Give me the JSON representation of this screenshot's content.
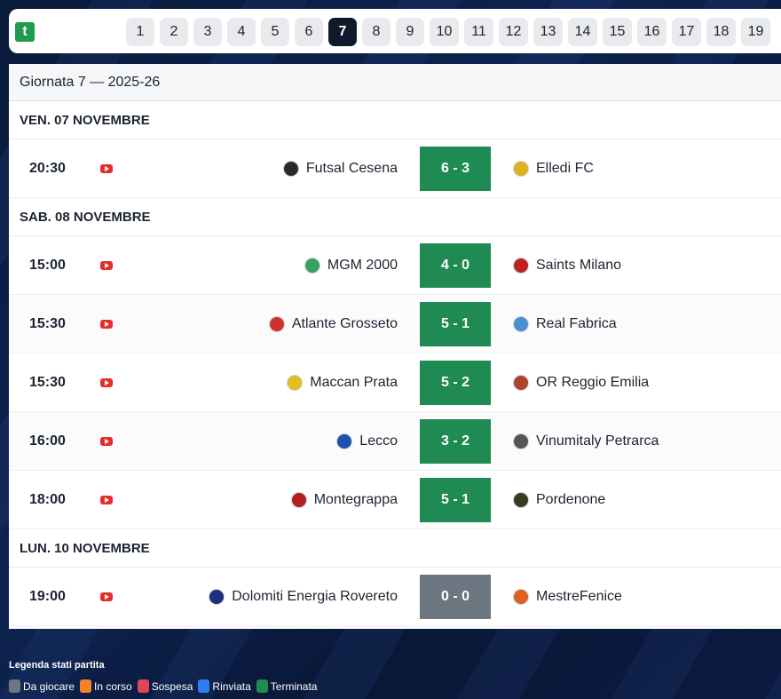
{
  "app": {
    "logo_letter": "t"
  },
  "rounds": {
    "items": [
      "1",
      "2",
      "3",
      "4",
      "5",
      "6",
      "7",
      "8",
      "9",
      "10",
      "11",
      "12",
      "13",
      "14",
      "15",
      "16",
      "17",
      "18",
      "19"
    ],
    "active": "7"
  },
  "panel": {
    "title": "Giornata 7 — 2025-26",
    "days": [
      {
        "label": "VEN. 07 NOVEMBRE",
        "matches": [
          {
            "time": "20:30",
            "home": "Futsal Cesena",
            "score": "6 - 3",
            "away": "Elledi FC",
            "status": "terminata",
            "home_color": "#2a2a2a",
            "away_color": "#e0b020"
          }
        ]
      },
      {
        "label": "SAB. 08 NOVEMBRE",
        "matches": [
          {
            "time": "15:00",
            "home": "MGM 2000",
            "score": "4 - 0",
            "away": "Saints Milano",
            "status": "terminata",
            "home_color": "#3aa060",
            "away_color": "#c02020"
          },
          {
            "time": "15:30",
            "home": "Atlante Grosseto",
            "score": "5 - 1",
            "away": "Real Fabrica",
            "status": "terminata",
            "home_color": "#d23030",
            "away_color": "#4a90d0"
          },
          {
            "time": "15:30",
            "home": "Maccan Prata",
            "score": "5 - 2",
            "away": "OR Reggio Emilia",
            "status": "terminata",
            "home_color": "#e0c020",
            "away_color": "#b04030"
          },
          {
            "time": "16:00",
            "home": "Lecco",
            "score": "3 - 2",
            "away": "Vinumitaly Petrarca",
            "status": "terminata",
            "home_color": "#2050b0",
            "away_color": "#555555"
          },
          {
            "time": "18:00",
            "home": "Montegrappa",
            "score": "5 - 1",
            "away": "Pordenone",
            "status": "terminata",
            "home_color": "#b02020",
            "away_color": "#3a3a20"
          }
        ]
      },
      {
        "label": "LUN. 10 NOVEMBRE",
        "matches": [
          {
            "time": "19:00",
            "home": "Dolomiti Energia Rovereto",
            "score": "0 - 0",
            "away": "MestreFenice",
            "status": "da-giocare",
            "home_color": "#203080",
            "away_color": "#e06020"
          }
        ]
      }
    ]
  },
  "legend": {
    "title": "Legenda stati partita",
    "items": [
      {
        "label": "Da giocare",
        "color": "#6b7680"
      },
      {
        "label": "In corso",
        "color": "#f0842a"
      },
      {
        "label": "Sospesa",
        "color": "#e04458"
      },
      {
        "label": "Rinviata",
        "color": "#2f7ef0"
      },
      {
        "label": "Terminata",
        "color": "#1f8a52"
      }
    ]
  },
  "icons": {
    "stream": "youtube-icon",
    "crest": "team-crest-icon"
  }
}
